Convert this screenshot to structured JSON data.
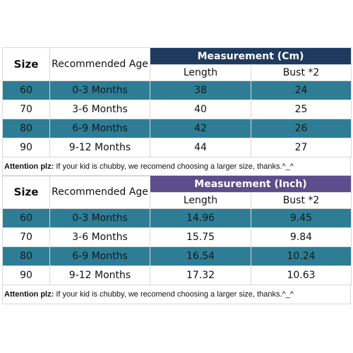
{
  "tables": [
    {
      "header": {
        "size": "Size",
        "age": "Recommended Age",
        "measurement": "Measurement (Cm)",
        "length": "Length",
        "bust": "Bust *2"
      },
      "rows": [
        {
          "size": "60",
          "age": "0-3 Months",
          "length": "38",
          "bust": "24"
        },
        {
          "size": "70",
          "age": "3-6 Months",
          "length": "40",
          "bust": "25"
        },
        {
          "size": "80",
          "age": "6-9 Months",
          "length": "42",
          "bust": "26"
        },
        {
          "size": "90",
          "age": "9-12 Months",
          "length": "44",
          "bust": "27"
        }
      ],
      "attention": {
        "label": "Attention plz:",
        "text": " If your kid is chubby, we recomend choosing a larger size, thanks.^_^"
      }
    },
    {
      "header": {
        "size": "Size",
        "age": "Recommended Age",
        "measurement": "Measurement (Inch)",
        "length": "Length",
        "bust": "Bust *2"
      },
      "rows": [
        {
          "size": "60",
          "age": "0-3 Months",
          "length": "14.96",
          "bust": "9.45"
        },
        {
          "size": "70",
          "age": "3-6 Months",
          "length": "15.75",
          "bust": "9.84"
        },
        {
          "size": "80",
          "age": "6-9 Months",
          "length": "16.54",
          "bust": "10.24"
        },
        {
          "size": "90",
          "age": "9-12 Months",
          "length": "17.32",
          "bust": "10.63"
        }
      ],
      "attention": {
        "label": "Attention plz:",
        "text": " If your kid is chubby, we recomend choosing a larger size, thanks.^_^"
      }
    }
  ],
  "colors": {
    "header_cm": "#1f3a5f",
    "header_inch": "#5d4d8c",
    "row_teal": "#2f7d95",
    "row_white": "#ffffff"
  }
}
